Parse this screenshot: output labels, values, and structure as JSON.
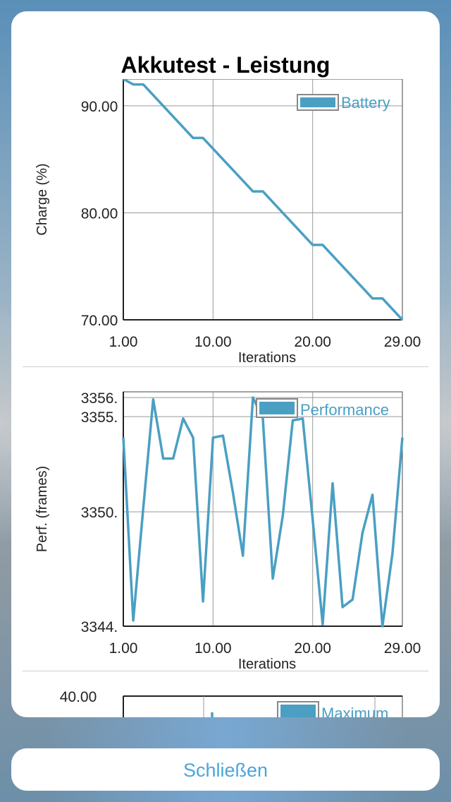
{
  "dialog": {
    "title": "Akkutest - Leistung",
    "close_label": "Schließen"
  },
  "colors": {
    "line": "#4a9fc3",
    "legend_swatch": "#4a9fc3",
    "close_text": "#4aa6dd"
  },
  "chart_data": [
    {
      "type": "line",
      "xlabel": "Iterations",
      "ylabel": "Charge (%)",
      "x_ticks": [
        "1.00",
        "10.00",
        "20.00",
        "29.00"
      ],
      "y_ticks": [
        "70.00",
        "80.00",
        "90.00"
      ],
      "xlim": [
        1,
        29
      ],
      "ylim": [
        70,
        92.5
      ],
      "grid": true,
      "legend_position": "top-right",
      "series": [
        {
          "name": "Battery",
          "x": [
            1,
            2,
            3,
            8,
            9,
            14,
            15,
            20,
            21,
            26,
            27,
            29
          ],
          "values": [
            92.5,
            92,
            92,
            87,
            87,
            82,
            82,
            77,
            77,
            72,
            72,
            70
          ]
        }
      ]
    },
    {
      "type": "line",
      "xlabel": "Iterations",
      "ylabel": "Perf. (frames)",
      "x_ticks": [
        "1.00",
        "10.00",
        "20.00",
        "29.00"
      ],
      "y_ticks": [
        "3344.",
        "3350.",
        "3355.",
        "3356."
      ],
      "xlim": [
        1,
        29
      ],
      "ylim": [
        3344,
        3356.3
      ],
      "grid": true,
      "legend_position": "top-right",
      "series": [
        {
          "name": "Performance",
          "x": [
            1,
            2,
            3,
            4,
            5,
            6,
            7,
            8,
            9,
            10,
            11,
            12,
            13,
            14,
            15,
            16,
            17,
            18,
            19,
            20,
            21,
            22,
            23,
            24,
            25,
            26,
            27,
            28,
            29
          ],
          "values": [
            3353.9,
            3344.3,
            3350.2,
            3355.9,
            3352.8,
            3352.8,
            3354.9,
            3353.9,
            3345.3,
            3353.9,
            3354.0,
            3351.0,
            3347.7,
            3356.0,
            3354.9,
            3346.5,
            3349.8,
            3354.8,
            3354.9,
            3349.6,
            3344.1,
            3351.5,
            3345.0,
            3345.4,
            3348.9,
            3350.9,
            3344.0,
            3347.8,
            3353.9
          ]
        }
      ]
    },
    {
      "type": "line",
      "y_ticks": [
        "40.00"
      ],
      "xlim": [
        1,
        29
      ],
      "grid": true,
      "legend_position": "top-right",
      "series": [
        {
          "name": "Maximum"
        }
      ]
    }
  ]
}
